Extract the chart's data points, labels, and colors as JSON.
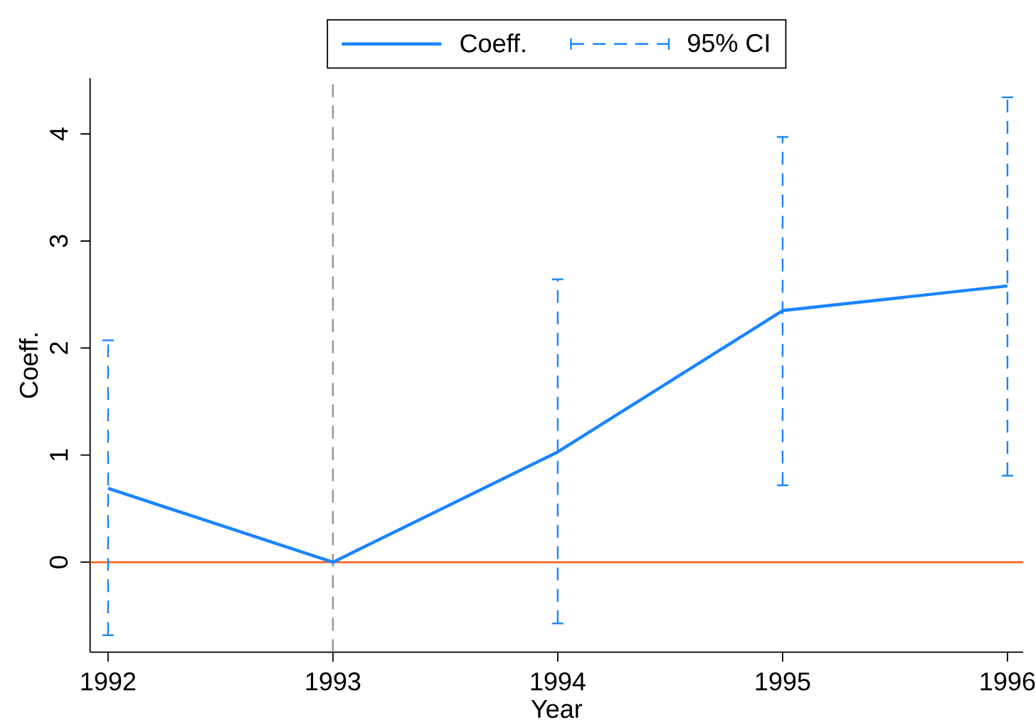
{
  "chart_data": {
    "type": "line",
    "xlabel": "Year",
    "ylabel": "Coeff.",
    "x": [
      1992,
      1993,
      1994,
      1995,
      1996
    ],
    "series": [
      {
        "name": "Coeff.",
        "color": "#1a85ff",
        "values": [
          0.69,
          0,
          1.03,
          2.35,
          2.58
        ],
        "errors": [
          [
            -0.69,
            2.08
          ],
          null,
          [
            -0.58,
            2.65
          ],
          [
            0.71,
            3.98
          ],
          [
            0.8,
            4.35
          ]
        ]
      },
      {
        "name": "95% CI",
        "type": "scatter",
        "color": "#1a85ff",
        "marker": "none",
        "line_style": "dashed",
        "values": [
          null,
          null,
          null,
          null,
          null
        ]
      }
    ],
    "xlim": [
      1991.92,
      1996.07
    ],
    "ylim": [
      -0.84,
      4.52
    ],
    "xticks": [
      1992,
      1993,
      1994,
      1995,
      1996
    ],
    "yticks": [
      0,
      1,
      2,
      3,
      4
    ],
    "ref_lines": [
      {
        "axis": "y",
        "value": 0,
        "color": "#ff5a1f",
        "line_style": "solid"
      },
      {
        "axis": "x",
        "value": 1993,
        "color": "#999999",
        "line_style": "dashed"
      }
    ],
    "legend": "top",
    "marker": "none",
    "line_style": "solid"
  }
}
